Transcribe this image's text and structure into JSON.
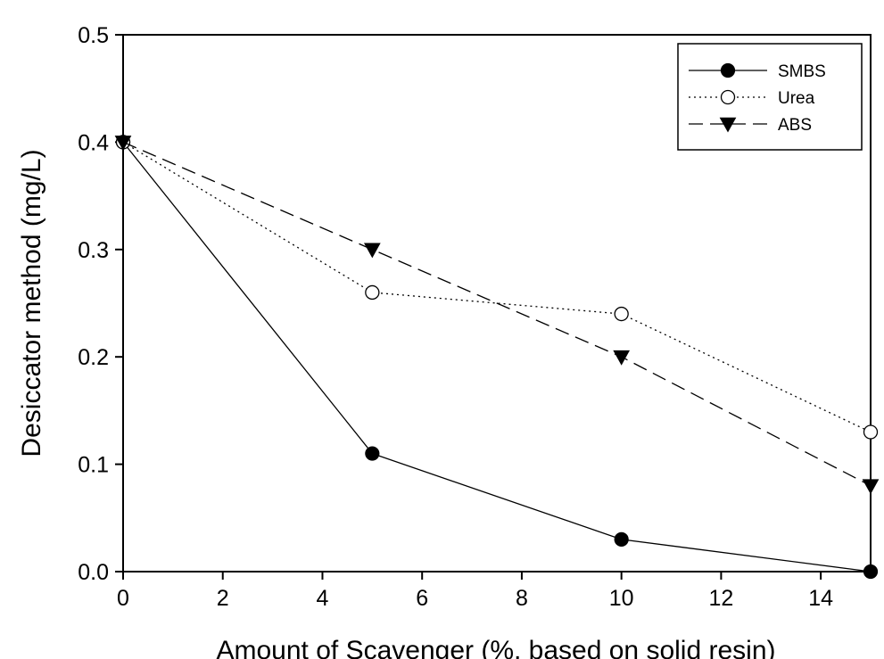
{
  "chart_data": {
    "type": "line",
    "title": "",
    "xlabel": "Amount of Scavenger (%, based on solid resin)",
    "ylabel": "Desiccator method (mg/L)",
    "xlim": [
      0,
      15
    ],
    "ylim": [
      0.0,
      0.5
    ],
    "x_ticks": [
      0,
      2,
      4,
      6,
      8,
      10,
      12,
      14
    ],
    "x_tick_labels": [
      "0",
      "2",
      "4",
      "6",
      "8",
      "10",
      "12",
      "14"
    ],
    "y_ticks": [
      0.0,
      0.1,
      0.2,
      0.3,
      0.4,
      0.5
    ],
    "y_tick_labels": [
      "0.0",
      "0.1",
      "0.2",
      "0.3",
      "0.4",
      "0.5"
    ],
    "grid": false,
    "legend_position": "top-right",
    "x": [
      0,
      5,
      10,
      15
    ],
    "series": [
      {
        "name": "SMBS",
        "values": [
          0.4,
          0.11,
          0.03,
          0.0
        ],
        "line_style": "solid",
        "marker": "filled-circle",
        "color": "#000000"
      },
      {
        "name": "Urea",
        "values": [
          0.4,
          0.26,
          0.24,
          0.13
        ],
        "line_style": "dotted",
        "marker": "open-circle",
        "color": "#000000"
      },
      {
        "name": "ABS",
        "values": [
          0.4,
          0.3,
          0.2,
          0.08
        ],
        "line_style": "dashed",
        "marker": "filled-triangle-down",
        "color": "#000000"
      }
    ]
  }
}
